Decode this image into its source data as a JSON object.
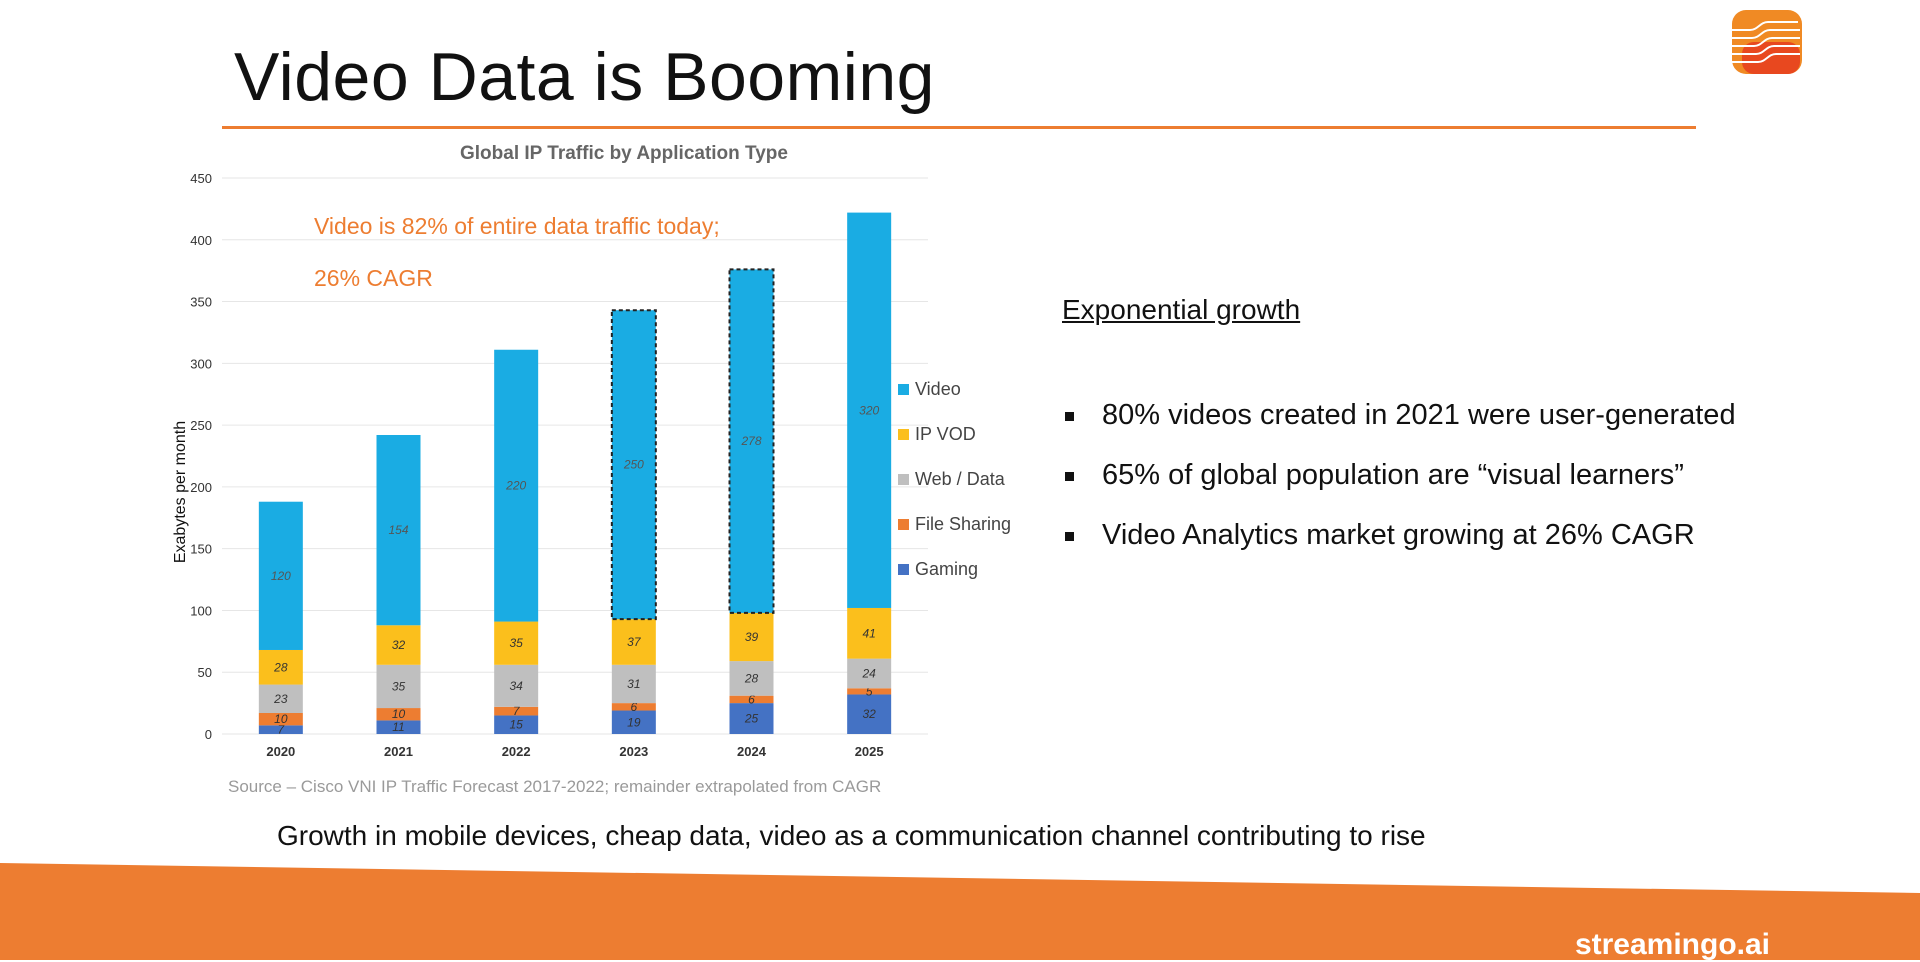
{
  "slide": {
    "title": "Video Data is Booming",
    "right_heading": "Exponential growth",
    "bullets": [
      "80% videos created in 2021 were user-generated",
      "65% of global population are “visual learners”",
      "Video Analytics market growing at 26% CAGR"
    ],
    "footer": "Growth in mobile devices, cheap data, video as a communication channel contributing to rise",
    "brand": "streamingo.ai",
    "source": "Source – Cisco VNI IP Traffic Forecast 2017-2022; remainder extrapolated from CAGR",
    "annotation_lines": [
      "Video is 82% of entire data traffic today;",
      "26% CAGR"
    ]
  },
  "colors": {
    "accent": "#ED7D31",
    "video": "#1AACE3",
    "ip_vod": "#FBBF1C",
    "web_data": "#BFBFBF",
    "file_sharing": "#ED7D31",
    "gaming": "#4472C4"
  },
  "icons": {
    "logo": "streamingo-logo-icon"
  },
  "chart_data": {
    "type": "bar",
    "stacked": true,
    "title": "Global IP Traffic by Application Type",
    "ylabel": "Exabytes per month",
    "xlabel": "",
    "ylim": [
      0,
      450
    ],
    "yticks": [
      0,
      50,
      100,
      150,
      200,
      250,
      300,
      350,
      400,
      450
    ],
    "categories": [
      "2020",
      "2021",
      "2022",
      "2023",
      "2024",
      "2025"
    ],
    "series": [
      {
        "name": "Gaming",
        "values": [
          7,
          11,
          15,
          19,
          25,
          32
        ],
        "labels": [
          "7",
          "11",
          "15",
          "19",
          "25",
          "32"
        ]
      },
      {
        "name": "File Sharing",
        "values": [
          10,
          10,
          7,
          6,
          6,
          5
        ],
        "labels": [
          "10",
          "10",
          "7",
          "6",
          "6",
          "5"
        ]
      },
      {
        "name": "Web / Data",
        "values": [
          23,
          35,
          34,
          31,
          28,
          24
        ],
        "labels": [
          "23",
          "35",
          "34",
          "31",
          "28",
          "24"
        ]
      },
      {
        "name": "IP VOD",
        "values": [
          28,
          32,
          35,
          37,
          39,
          41
        ],
        "labels": [
          "28",
          "32",
          "35",
          "37",
          "39",
          "41"
        ]
      },
      {
        "name": "Video",
        "values": [
          120,
          154,
          220,
          250,
          278,
          320
        ],
        "labels": [
          "120",
          "154",
          "220",
          "250",
          "278",
          "320"
        ]
      }
    ],
    "projected_video_categories": [
      "2023",
      "2024"
    ],
    "legend_placement": "right",
    "grid": true
  }
}
